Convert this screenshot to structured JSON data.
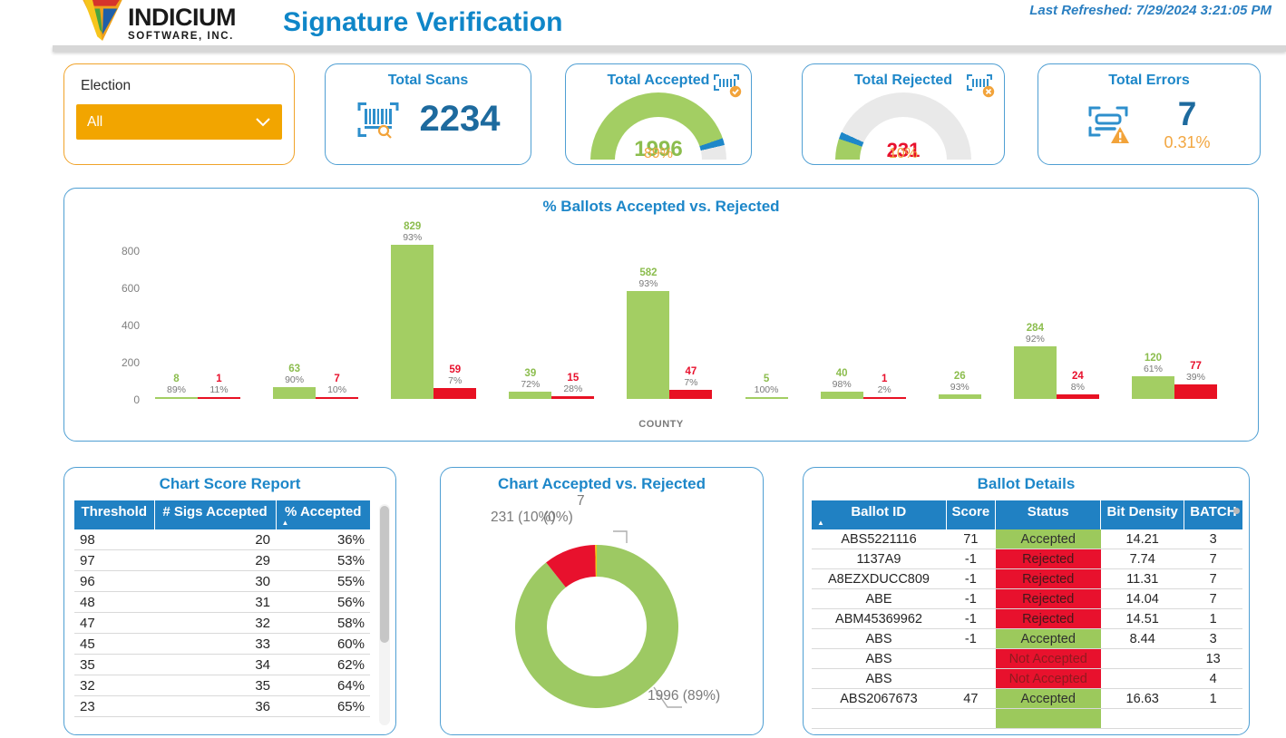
{
  "header": {
    "logo_name": "INDICIUM",
    "logo_sub": "SOFTWARE, INC.",
    "title": "Signature Verification",
    "last_refreshed": "Last Refreshed:  7/29/2024 3:21:05 PM"
  },
  "election": {
    "label": "Election",
    "value": "All"
  },
  "kpis": {
    "total_scans": {
      "title": "Total Scans",
      "value": "2234"
    },
    "total_accepted": {
      "title": "Total Accepted",
      "value": "1996",
      "pct": "89%",
      "value_num": 1996
    },
    "total_rejected": {
      "title": "Total Rejected",
      "value": "231",
      "pct": "10%",
      "value_num": 231
    },
    "total_errors": {
      "title": "Total Errors",
      "value": "7",
      "pct": "0.31%"
    },
    "total_num": 2234
  },
  "chart_data": [
    {
      "type": "bar",
      "title": "% Ballots Accepted vs. Rejected",
      "xlabel": "COUNTY",
      "ylabel": "",
      "ylim": [
        0,
        880
      ],
      "yticks": [
        0,
        200,
        400,
        600,
        800
      ],
      "grid": false,
      "series_names": [
        "Accepted",
        "Rejected"
      ],
      "colors": {
        "accepted": "#a3ce63",
        "rejected": "#e81123",
        "accepted_label": "#8cbd4e",
        "rejected_label": "#e8112d"
      },
      "groups": [
        {
          "accepted": 8,
          "accepted_pct": "89%",
          "rejected": 1,
          "rejected_pct": "11%"
        },
        {
          "accepted": 63,
          "accepted_pct": "90%",
          "rejected": 7,
          "rejected_pct": "10%"
        },
        {
          "accepted": 829,
          "accepted_pct": "93%",
          "rejected": 59,
          "rejected_pct": "7%"
        },
        {
          "accepted": 39,
          "accepted_pct": "72%",
          "rejected": 15,
          "rejected_pct": "28%"
        },
        {
          "accepted": 582,
          "accepted_pct": "93%",
          "rejected": 47,
          "rejected_pct": "7%"
        },
        {
          "accepted": 5,
          "accepted_pct": "100%",
          "rejected": null,
          "rejected_pct": null
        },
        {
          "accepted": 40,
          "accepted_pct": "98%",
          "rejected": 1,
          "rejected_pct": "2%"
        },
        {
          "accepted": 26,
          "accepted_pct": "93%",
          "rejected": null,
          "rejected_pct": null
        },
        {
          "accepted": 284,
          "accepted_pct": "92%",
          "rejected": 24,
          "rejected_pct": "8%"
        },
        {
          "accepted": 120,
          "accepted_pct": "61%",
          "rejected": 77,
          "rejected_pct": "39%"
        }
      ]
    },
    {
      "type": "pie",
      "title": "Chart Accepted vs. Rejected",
      "legend": "none",
      "slices": [
        {
          "name": "Accepted",
          "value": 1996,
          "label": "1996 (89%)",
          "color": "#9dc963"
        },
        {
          "name": "Rejected",
          "value": 231,
          "label": "231 (10%)",
          "color": "#e8112d"
        },
        {
          "name": "Errors",
          "value": 7,
          "label_top": "7",
          "label_bottom": "(0%)",
          "color": "#f2c80f"
        }
      ]
    }
  ],
  "score_report": {
    "title": "Chart Score Report",
    "columns": [
      "Threshold",
      "# Sigs Accepted",
      "% Accepted"
    ],
    "sorted_column": "% Accepted",
    "sort_glyph": "▲",
    "rows": [
      [
        "98",
        "20",
        "36%"
      ],
      [
        "97",
        "29",
        "53%"
      ],
      [
        "96",
        "30",
        "55%"
      ],
      [
        "48",
        "31",
        "56%"
      ],
      [
        "47",
        "32",
        "58%"
      ],
      [
        "45",
        "33",
        "60%"
      ],
      [
        "35",
        "34",
        "62%"
      ],
      [
        "32",
        "35",
        "64%"
      ],
      [
        "23",
        "36",
        "65%"
      ]
    ]
  },
  "ballot_details": {
    "title": "Ballot Details",
    "columns": [
      "Ballot ID",
      "Score",
      "Status",
      "Bit Density",
      "BATCH"
    ],
    "sorted_column": "Ballot ID",
    "sort_glyph": "▲",
    "rows": [
      [
        "ABS5221116",
        "71",
        "Accepted",
        "14.21",
        "3"
      ],
      [
        "1137A9",
        "-1",
        "Rejected",
        "7.74",
        "7"
      ],
      [
        "A8EZXDUCC809",
        "-1",
        "Rejected",
        "11.31",
        "7"
      ],
      [
        "ABE",
        "-1",
        "Rejected",
        "14.04",
        "7"
      ],
      [
        "ABM45369962",
        "-1",
        "Rejected",
        "14.51",
        "1"
      ],
      [
        "ABS",
        "-1",
        "Accepted",
        "8.44",
        "3"
      ],
      [
        "ABS",
        "",
        "Not Accepted",
        "",
        "13"
      ],
      [
        "ABS",
        "",
        "Not Accepted",
        "",
        "4"
      ],
      [
        "ABS2067673",
        "47",
        "Accepted",
        "16.63",
        "1"
      ]
    ]
  },
  "colors": {
    "title_blue": "#1d87c9",
    "dark_blue": "#1d6a9e",
    "green": "#a3ce63",
    "red": "#e8112d",
    "orange": "#f2a640",
    "gauge_gray": "#e9e9e9",
    "gauge_tick": "#1e87c9"
  }
}
